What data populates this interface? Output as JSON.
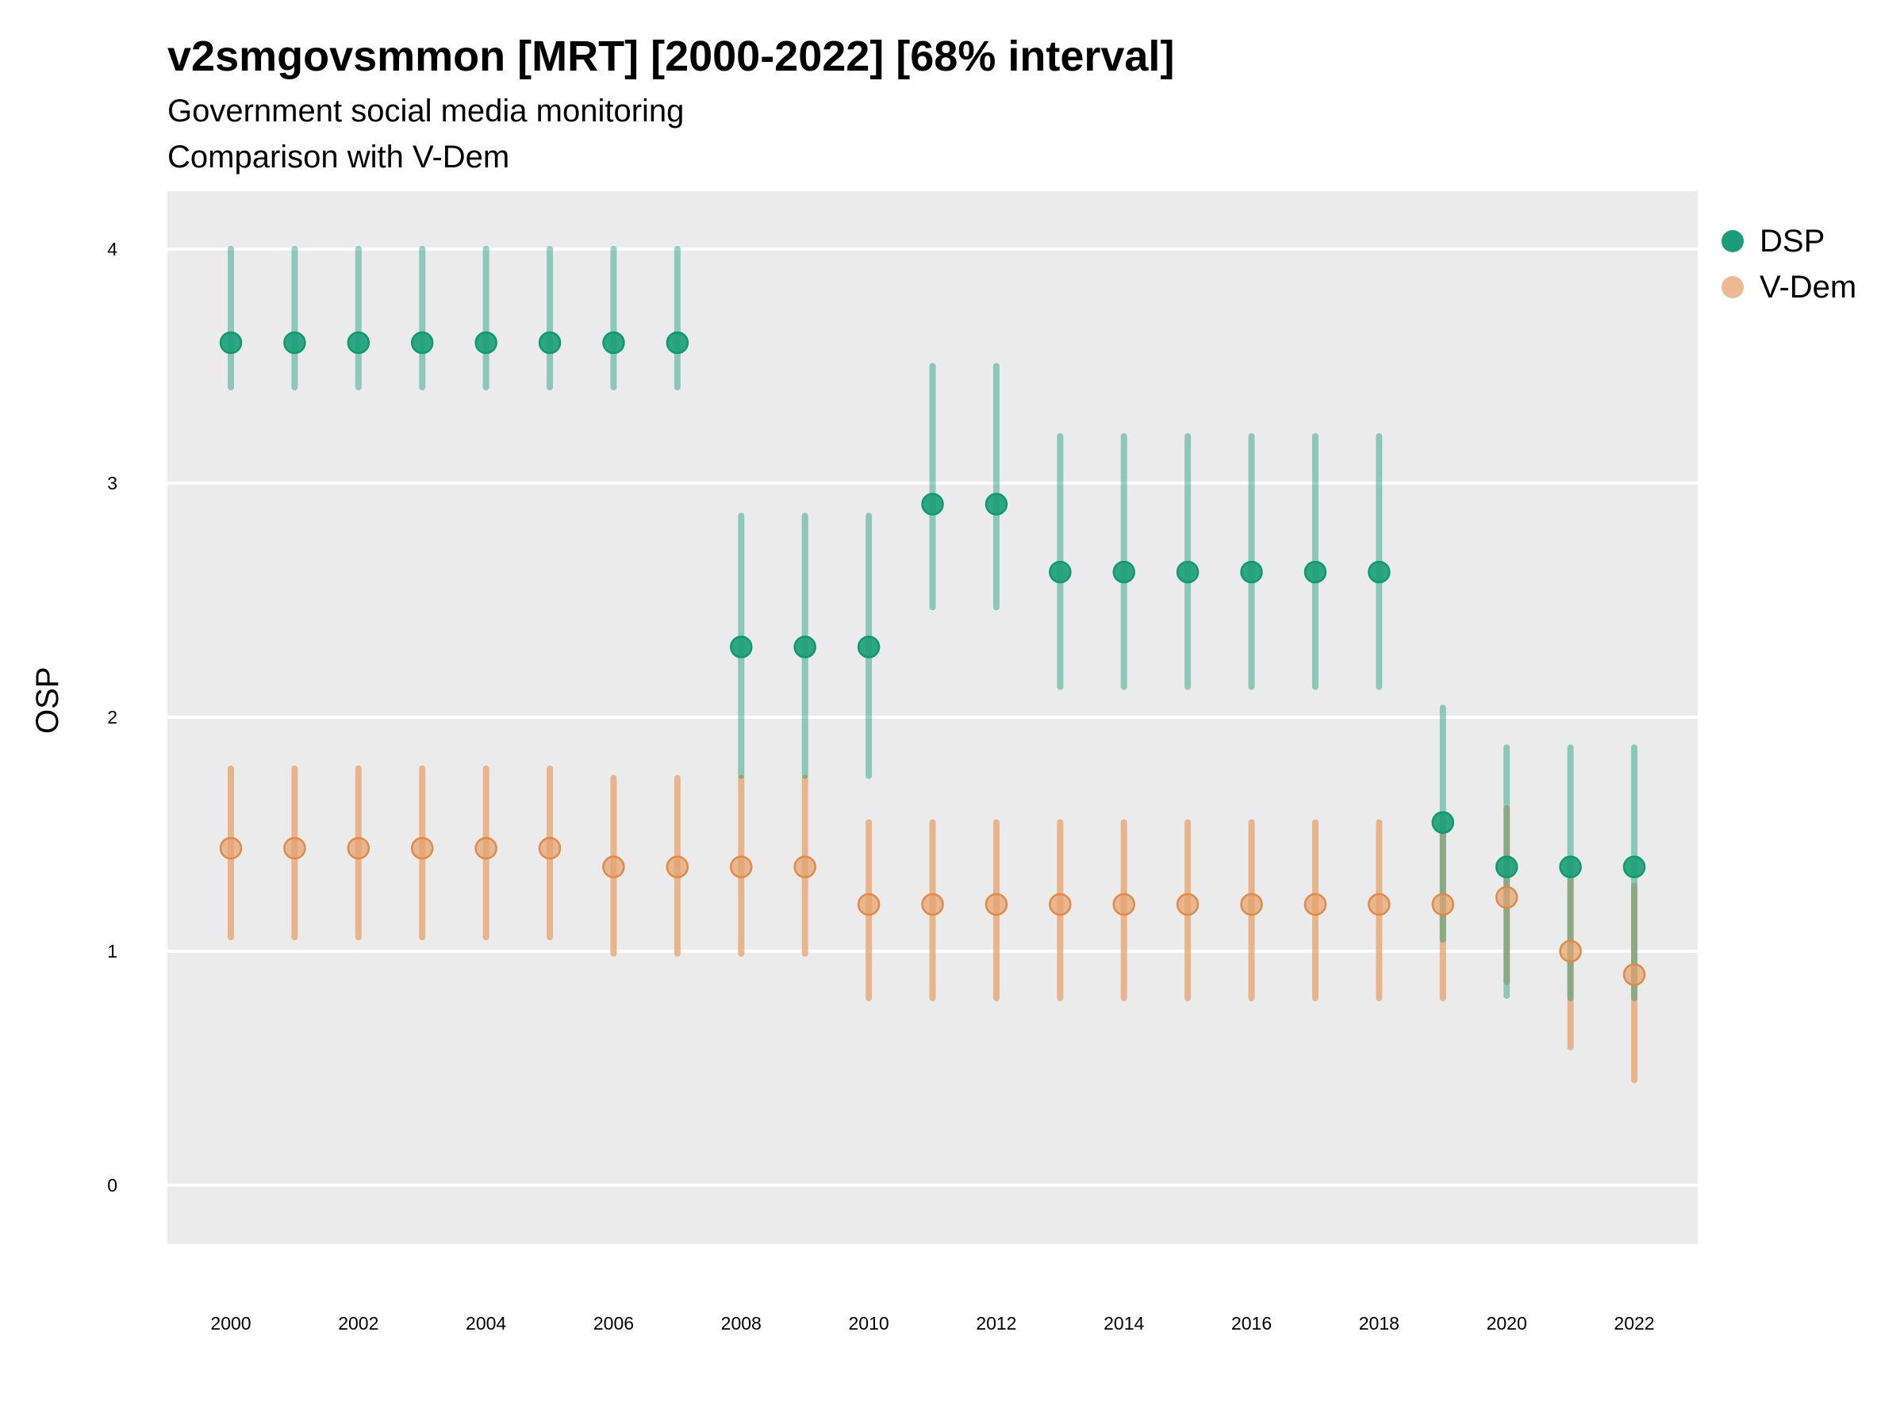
{
  "chart_data": {
    "type": "scatter",
    "title": "v2smgovsmmon [MRT] [2000-2022] [68% interval]",
    "subtitle": "Government social media monitoring",
    "caption": "Comparison with V-Dem",
    "xlabel": "",
    "ylabel": "OSP",
    "ylim": [
      -0.25,
      4.25
    ],
    "yticks": [
      "0",
      "1",
      "2",
      "3",
      "4"
    ],
    "xticks": [
      "2000",
      "2002",
      "2004",
      "2006",
      "2008",
      "2010",
      "2012",
      "2014",
      "2016",
      "2018",
      "2020",
      "2022"
    ],
    "x": [
      2000,
      2001,
      2002,
      2003,
      2004,
      2005,
      2006,
      2007,
      2008,
      2009,
      2010,
      2011,
      2012,
      2013,
      2014,
      2015,
      2016,
      2017,
      2018,
      2019,
      2020,
      2021,
      2022
    ],
    "legend_position": "right",
    "series": [
      {
        "name": "DSP",
        "color": "#1b9e77",
        "values": [
          3.6,
          3.6,
          3.6,
          3.6,
          3.6,
          3.6,
          3.6,
          3.6,
          2.3,
          2.3,
          2.3,
          2.91,
          2.91,
          2.62,
          2.62,
          2.62,
          2.62,
          2.62,
          2.62,
          1.55,
          1.36,
          1.36,
          1.36
        ],
        "lower": [
          3.41,
          3.41,
          3.41,
          3.41,
          3.41,
          3.41,
          3.41,
          3.41,
          1.75,
          1.75,
          1.75,
          2.47,
          2.47,
          2.13,
          2.13,
          2.13,
          2.13,
          2.13,
          2.13,
          1.05,
          0.81,
          0.8,
          0.8
        ],
        "upper": [
          4.0,
          4.0,
          4.0,
          4.0,
          4.0,
          4.0,
          4.0,
          4.0,
          2.86,
          2.86,
          2.86,
          3.5,
          3.5,
          3.2,
          3.2,
          3.2,
          3.2,
          3.2,
          3.2,
          2.04,
          1.87,
          1.87,
          1.87
        ]
      },
      {
        "name": "V-Dem",
        "color": "#e6a16b",
        "values": [
          1.44,
          1.44,
          1.44,
          1.44,
          1.44,
          1.44,
          1.36,
          1.36,
          1.36,
          1.36,
          1.2,
          1.2,
          1.2,
          1.2,
          1.2,
          1.2,
          1.2,
          1.2,
          1.2,
          1.2,
          1.23,
          1.0,
          0.9
        ],
        "lower": [
          1.06,
          1.06,
          1.06,
          1.06,
          1.06,
          1.06,
          0.99,
          0.99,
          0.99,
          0.99,
          0.8,
          0.8,
          0.8,
          0.8,
          0.8,
          0.8,
          0.8,
          0.8,
          0.8,
          0.8,
          0.87,
          0.59,
          0.45
        ],
        "upper": [
          1.78,
          1.78,
          1.78,
          1.78,
          1.78,
          1.78,
          1.74,
          1.74,
          1.74,
          1.74,
          1.55,
          1.55,
          1.55,
          1.55,
          1.55,
          1.55,
          1.55,
          1.55,
          1.55,
          1.55,
          1.61,
          1.38,
          1.28
        ]
      }
    ]
  }
}
